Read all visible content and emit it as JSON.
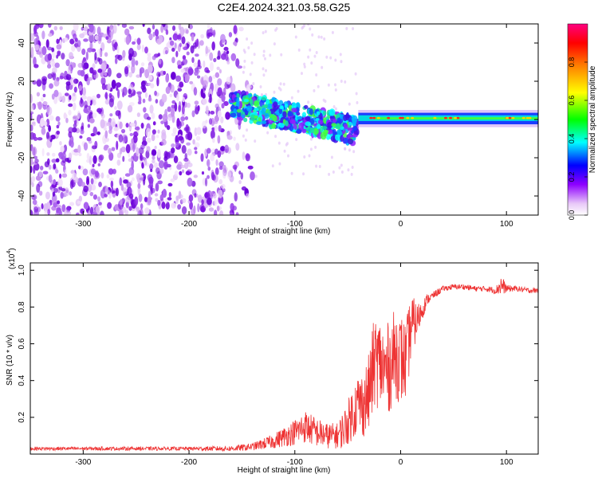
{
  "title": "C2E4.2024.321.03.58.G25",
  "colors": {
    "spectrogram_low": "#7b1fe6",
    "snr_line": "#ee3333",
    "colorbar": [
      "#f5e6fa",
      "#8e00ff",
      "#0000ff",
      "#00ffff",
      "#00ff00",
      "#ffff00",
      "#ff8000",
      "#ff0000",
      "#ff0080"
    ]
  },
  "chart_data": [
    {
      "type": "heatmap",
      "title": "",
      "xlabel": "Height of straight line (km)",
      "ylabel": "Frequency (Hz)",
      "xlim": [
        -350,
        130
      ],
      "ylim": [
        -50,
        50
      ],
      "x_ticks": [
        "-300",
        "-200",
        "-100",
        "0",
        "100"
      ],
      "y_ticks": [
        "-40",
        "-20",
        "0",
        "20",
        "40"
      ],
      "colorbar": {
        "label": "Normalized spectral amplitude",
        "range": [
          0,
          1
        ],
        "ticks": [
          "0.0",
          "0.2",
          "0.4",
          "0.6",
          "0.8"
        ]
      },
      "regions": [
        {
          "x_range": [
            -350,
            -160
          ],
          "freq_range": [
            -50,
            50
          ],
          "amplitude": 0.1
        },
        {
          "x_range": [
            -160,
            -40
          ],
          "freq_center": [
            8,
            -8
          ],
          "amplitude": 0.35
        },
        {
          "x_range": [
            -40,
            130
          ],
          "freq_center": [
            0,
            2
          ],
          "amplitude": 0.55
        }
      ]
    },
    {
      "type": "line",
      "title": "",
      "xlabel": "Height of straight line (km)",
      "ylabel": "SNR (10 * v/v)",
      "y_scale_label": "(x10",
      "y_scale_exponent": "4",
      "xlim": [
        -350,
        130
      ],
      "ylim": [
        0,
        1.04
      ],
      "x_ticks": [
        "-300",
        "-200",
        "-100",
        "0",
        "100"
      ],
      "y_ticks": [
        "0.2",
        "0.4",
        "0.6",
        "0.8",
        "1.0"
      ],
      "series": [
        {
          "x": [
            -350,
            -300,
            -250,
            -200,
            -160,
            -140,
            -120,
            -100,
            -90,
            -80,
            -70,
            -60,
            -55,
            -50,
            -45,
            -40,
            -35,
            -30,
            -25,
            -20,
            -15,
            -10,
            -5,
            0,
            5,
            10,
            15,
            20,
            25,
            30,
            35,
            40,
            50,
            60,
            70,
            80,
            90,
            95,
            100,
            110,
            120,
            130
          ],
          "values": [
            0.03,
            0.03,
            0.03,
            0.03,
            0.03,
            0.04,
            0.07,
            0.12,
            0.15,
            0.12,
            0.1,
            0.1,
            0.13,
            0.17,
            0.23,
            0.28,
            0.27,
            0.33,
            0.5,
            0.5,
            0.45,
            0.48,
            0.55,
            0.52,
            0.5,
            0.7,
            0.72,
            0.78,
            0.84,
            0.86,
            0.88,
            0.9,
            0.91,
            0.91,
            0.9,
            0.9,
            0.89,
            0.92,
            0.9,
            0.9,
            0.89,
            0.89
          ],
          "noise": [
            0.01,
            0.01,
            0.01,
            0.01,
            0.015,
            0.02,
            0.04,
            0.07,
            0.09,
            0.08,
            0.07,
            0.07,
            0.1,
            0.12,
            0.15,
            0.17,
            0.18,
            0.22,
            0.25,
            0.25,
            0.25,
            0.25,
            0.25,
            0.25,
            0.22,
            0.18,
            0.1,
            0.06,
            0.03,
            0.02,
            0.02,
            0.015,
            0.015,
            0.015,
            0.015,
            0.015,
            0.02,
            0.06,
            0.02,
            0.015,
            0.015,
            0.015
          ]
        }
      ]
    }
  ]
}
